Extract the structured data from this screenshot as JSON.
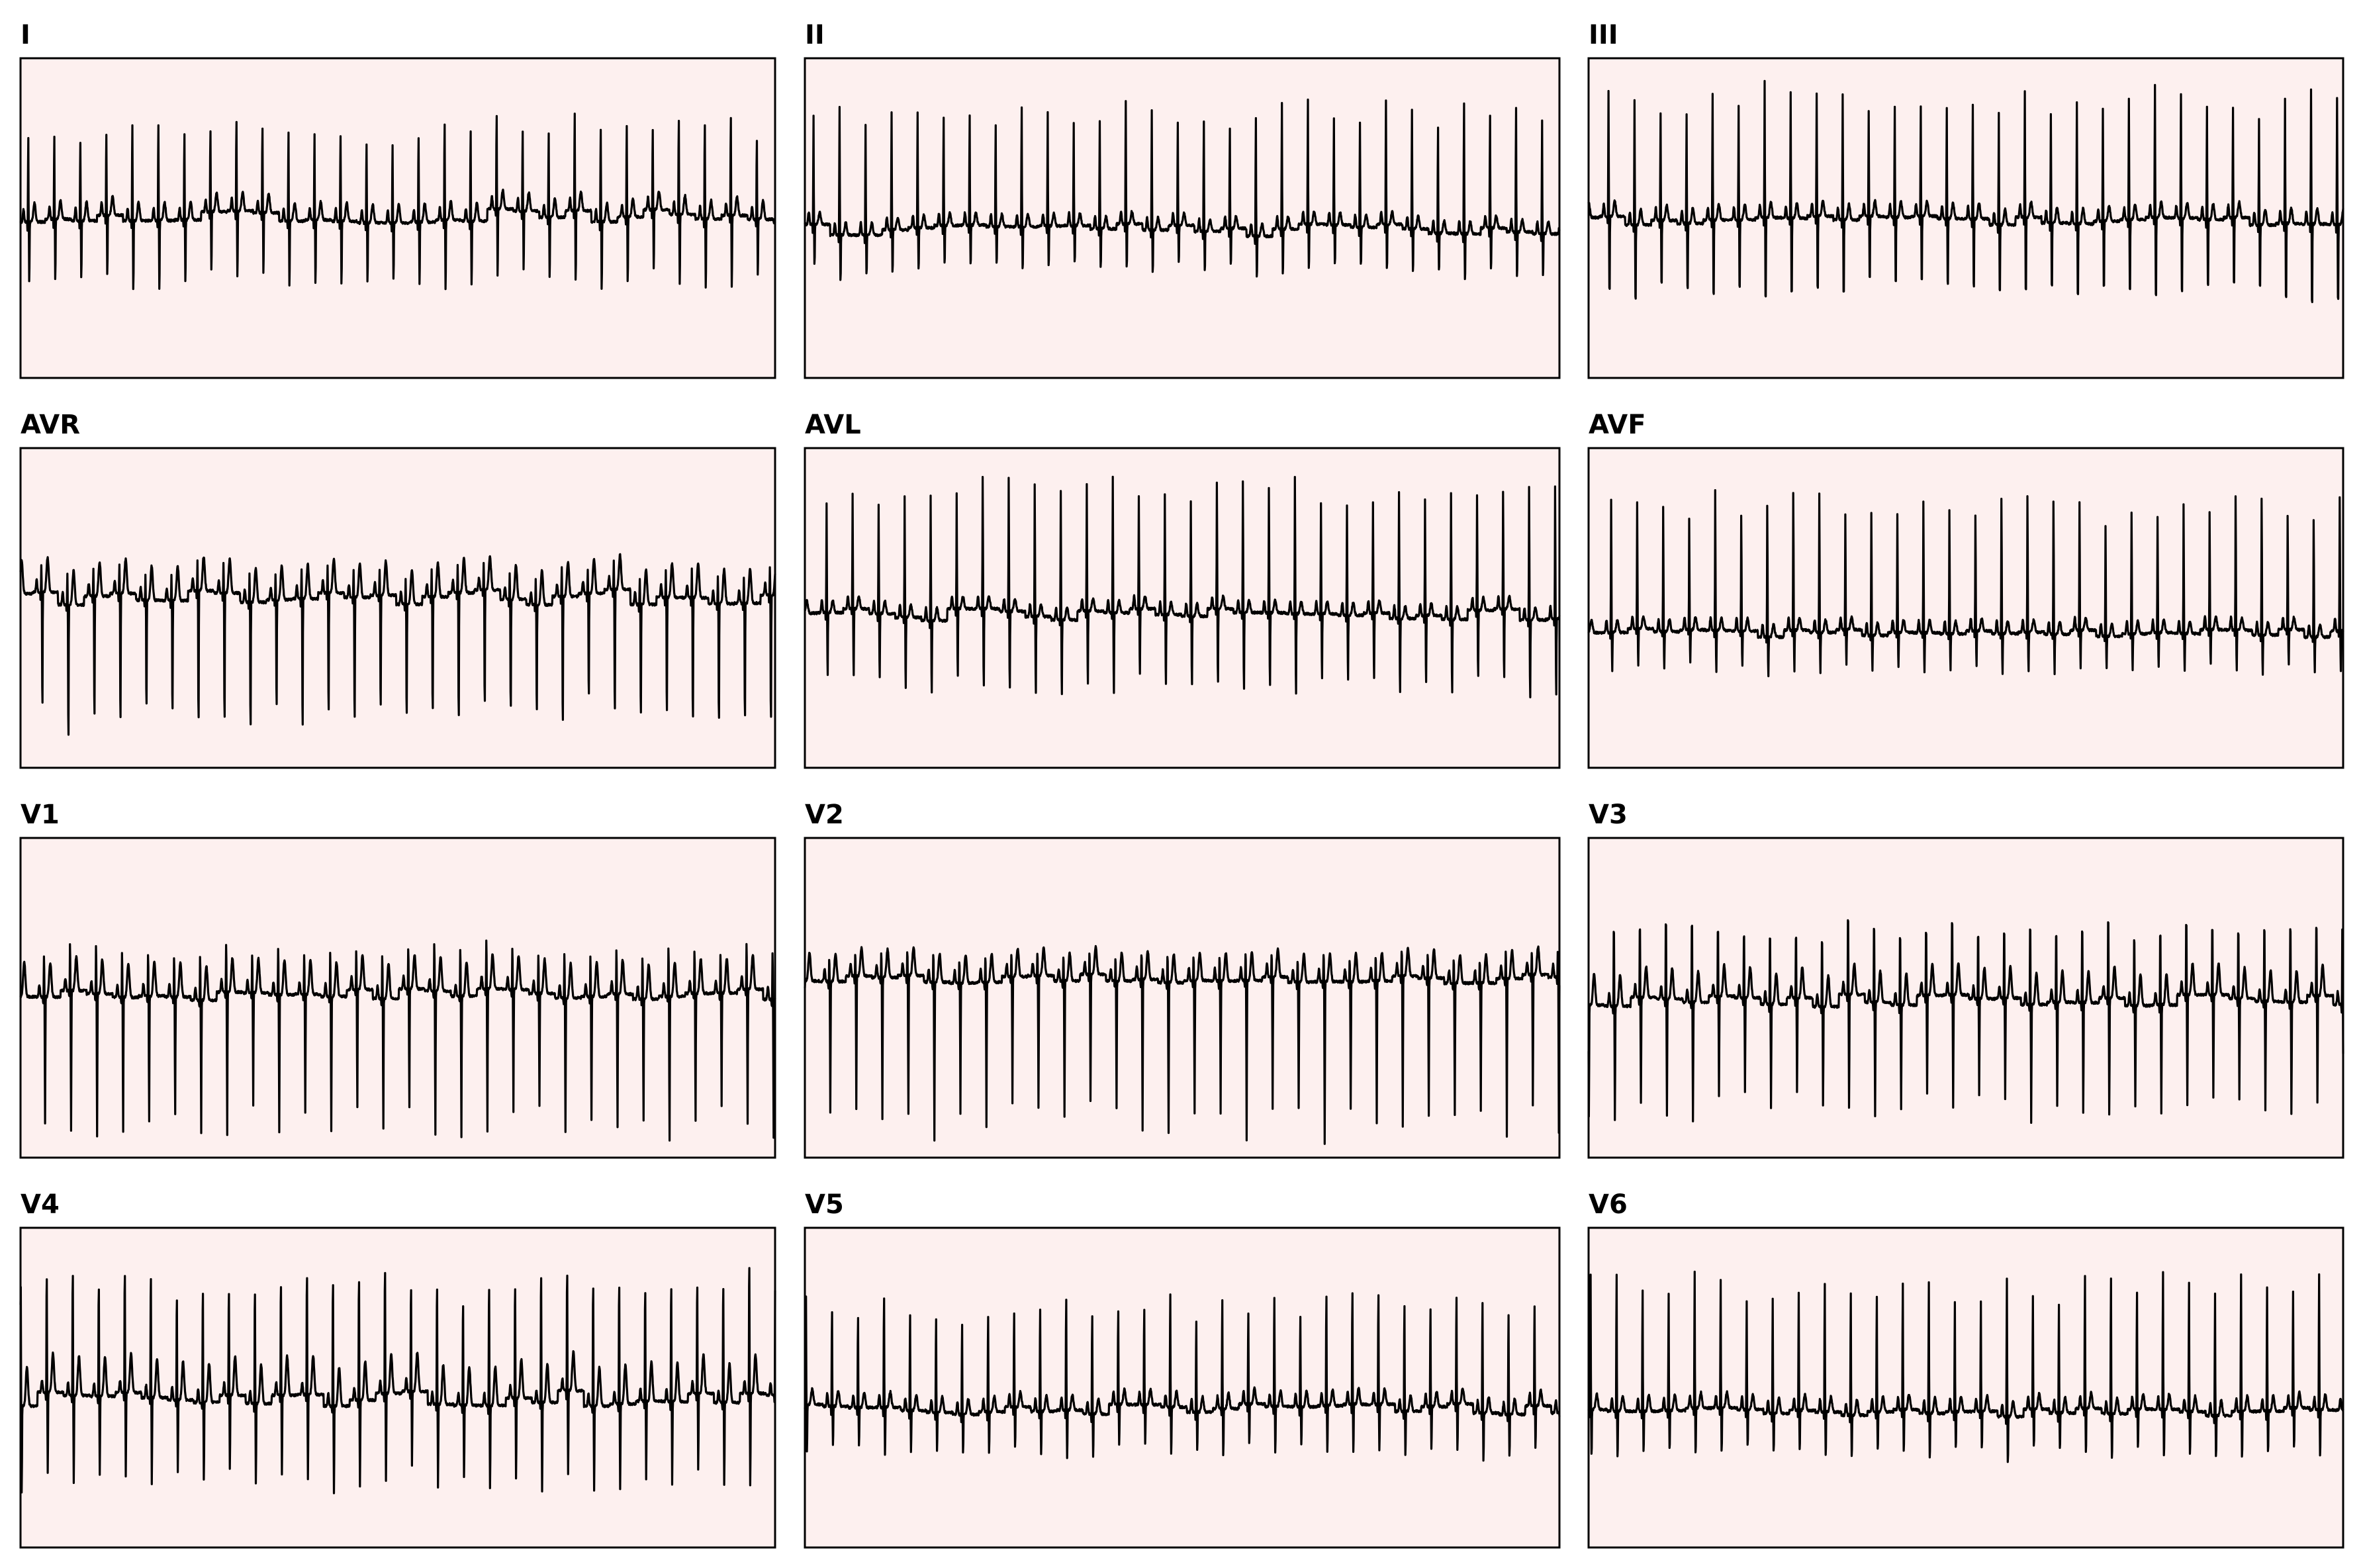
{
  "chart_data": {
    "type": "line",
    "layout": "4x3",
    "grid": false,
    "background_color": "#fdf0ef",
    "trace_color": "#000000",
    "leads": [
      {
        "id": "I",
        "title": "I",
        "beats": 29,
        "r": 0.62,
        "s": -0.45,
        "t": 0.12,
        "base": 0.05,
        "jitter": 0.1
      },
      {
        "id": "II",
        "title": "II",
        "beats": 29,
        "r": 0.78,
        "s": -0.3,
        "t": 0.08,
        "base": -0.22,
        "jitter": 0.08
      },
      {
        "id": "III",
        "title": "III",
        "beats": 29,
        "r": 0.8,
        "s": -0.55,
        "t": 0.1,
        "base": -0.05,
        "jitter": 0.06
      },
      {
        "id": "AVR",
        "title": "AVR",
        "beats": 29,
        "r": 0.18,
        "s": -0.85,
        "t": 0.22,
        "base": 0.2,
        "jitter": 0.1
      },
      {
        "id": "AVL",
        "title": "AVL",
        "beats": 29,
        "r": 0.82,
        "s": -0.5,
        "t": 0.08,
        "base": -0.12,
        "jitter": 0.08
      },
      {
        "id": "AVF",
        "title": "AVF",
        "beats": 29,
        "r": 0.85,
        "s": -0.25,
        "t": 0.08,
        "base": -0.45,
        "jitter": 0.06
      },
      {
        "id": "V1",
        "title": "V1",
        "beats": 29,
        "r": 0.3,
        "s": -0.85,
        "t": 0.22,
        "base": 0.05,
        "jitter": 0.08
      },
      {
        "id": "V2",
        "title": "V2",
        "beats": 29,
        "r": 0.18,
        "s": -0.95,
        "t": 0.18,
        "base": 0.35,
        "jitter": 0.06
      },
      {
        "id": "V3",
        "title": "V3",
        "beats": 29,
        "r": 0.55,
        "s": -0.7,
        "t": 0.2,
        "base": -0.05,
        "jitter": 0.08
      },
      {
        "id": "V4",
        "title": "V4",
        "beats": 29,
        "r": 0.85,
        "s": -0.55,
        "t": 0.25,
        "base": -0.2,
        "jitter": 0.1
      },
      {
        "id": "V5",
        "title": "V5",
        "beats": 29,
        "r": 0.72,
        "s": -0.3,
        "t": 0.1,
        "base": -0.4,
        "jitter": 0.08
      },
      {
        "id": "V6",
        "title": "V6",
        "beats": 29,
        "r": 0.85,
        "s": -0.3,
        "t": 0.1,
        "base": -0.45,
        "jitter": 0.06
      }
    ]
  }
}
